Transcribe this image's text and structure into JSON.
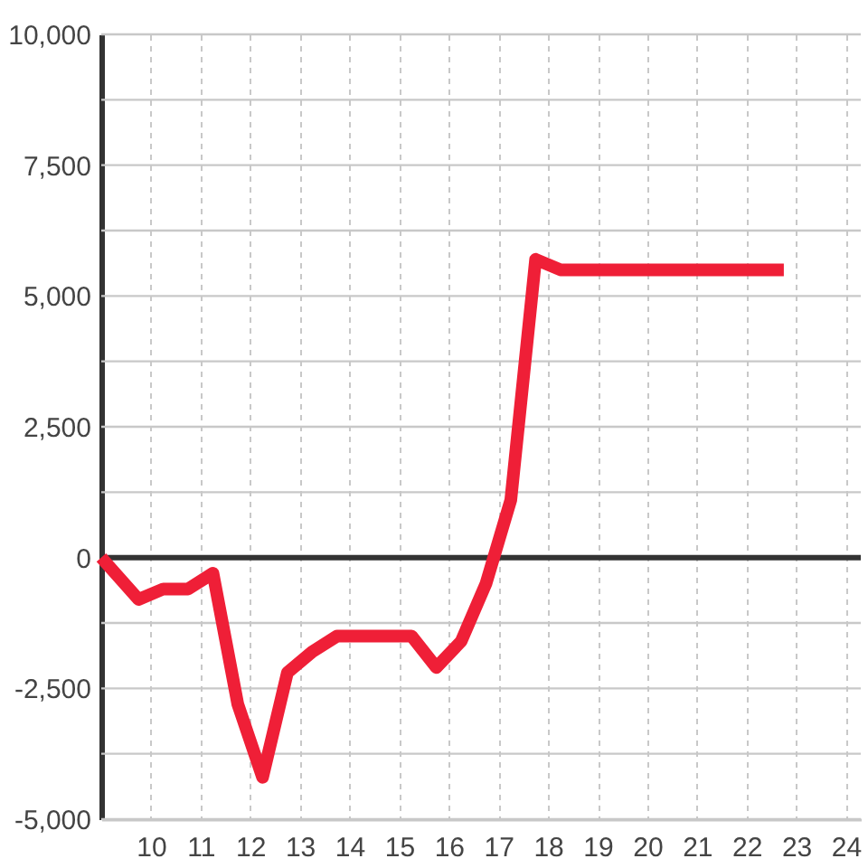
{
  "chart_data": {
    "type": "line",
    "x": [
      9,
      9.75,
      10.25,
      10.75,
      11.25,
      11.75,
      12.25,
      12.75,
      13.25,
      13.75,
      14.25,
      14.75,
      15.25,
      15.75,
      16.25,
      16.75,
      17.25,
      17.75,
      18.25,
      18.75,
      19.25,
      19.75,
      20.25,
      20.75,
      21.25,
      21.75,
      22.25,
      22.75
    ],
    "series": [
      {
        "color": "#ef1f37",
        "values": [
          0,
          -800,
          -600,
          -600,
          -300,
          -2800,
          -4200,
          -2200,
          -1800,
          -1500,
          -1500,
          -1500,
          -1500,
          -2100,
          -1600,
          -500,
          1100,
          5700,
          5500,
          5500,
          5500,
          5500,
          5500,
          5500,
          5500,
          5500,
          5500,
          5500
        ]
      }
    ],
    "xlim": [
      9,
      24.3
    ],
    "xticks": [
      10,
      11,
      12,
      13,
      14,
      15,
      16,
      17,
      18,
      19,
      20,
      21,
      22,
      23,
      24
    ],
    "ylim": [
      -5000,
      10000
    ],
    "yticks": [
      {
        "value": -5000,
        "label": "-5,000"
      },
      {
        "value": -3750,
        "label": null
      },
      {
        "value": -2500,
        "label": "-2,500"
      },
      {
        "value": -1250,
        "label": null
      },
      {
        "value": 0,
        "label": "0"
      },
      {
        "value": 1250,
        "label": null
      },
      {
        "value": 2500,
        "label": "2,500"
      },
      {
        "value": 3750,
        "label": null
      },
      {
        "value": 5000,
        "label": "5,000"
      },
      {
        "value": 6250,
        "label": null
      },
      {
        "value": 7500,
        "label": "7,500"
      },
      {
        "value": 8750,
        "label": null
      },
      {
        "value": 10000,
        "label": "10,000"
      }
    ],
    "grid": true,
    "marker": "none",
    "line_style": "solid",
    "ref_lines": [
      {
        "axis": "y",
        "value": 0,
        "color": "#333333"
      }
    ]
  }
}
